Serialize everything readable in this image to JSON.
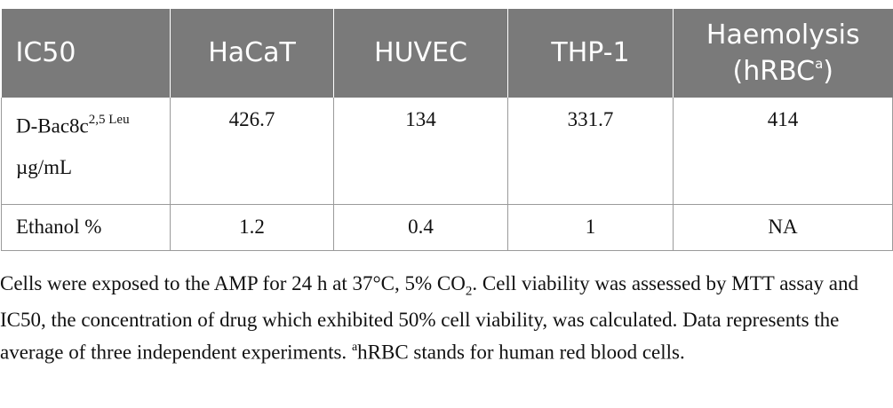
{
  "table": {
    "headers": [
      "IC50",
      "HaCaT",
      "HUVEC",
      "THP-1",
      "Haemolysis (hRBC",
      "a",
      ")"
    ],
    "row1": {
      "label_main": "D-Bac8c",
      "label_sup": "2,5 Leu",
      "label_unit": "µg/mL",
      "values": [
        "426.7",
        "134",
        "331.7",
        "414"
      ]
    },
    "row2": {
      "label": "Ethanol %",
      "values": [
        "1.2",
        "0.4",
        "1",
        "NA"
      ]
    }
  },
  "footnote": {
    "part1": "Cells were exposed to the AMP for 24 h at 37°C, 5% CO",
    "sub": "2",
    "part2": ". Cell viability was assessed by MTT assay and IC50, the concentration of drug which exhibited 50% cell viability, was calculated. Data represents the average of three independent experiments. ",
    "sup": "a",
    "part3": "hRBC stands for human red blood cells."
  }
}
